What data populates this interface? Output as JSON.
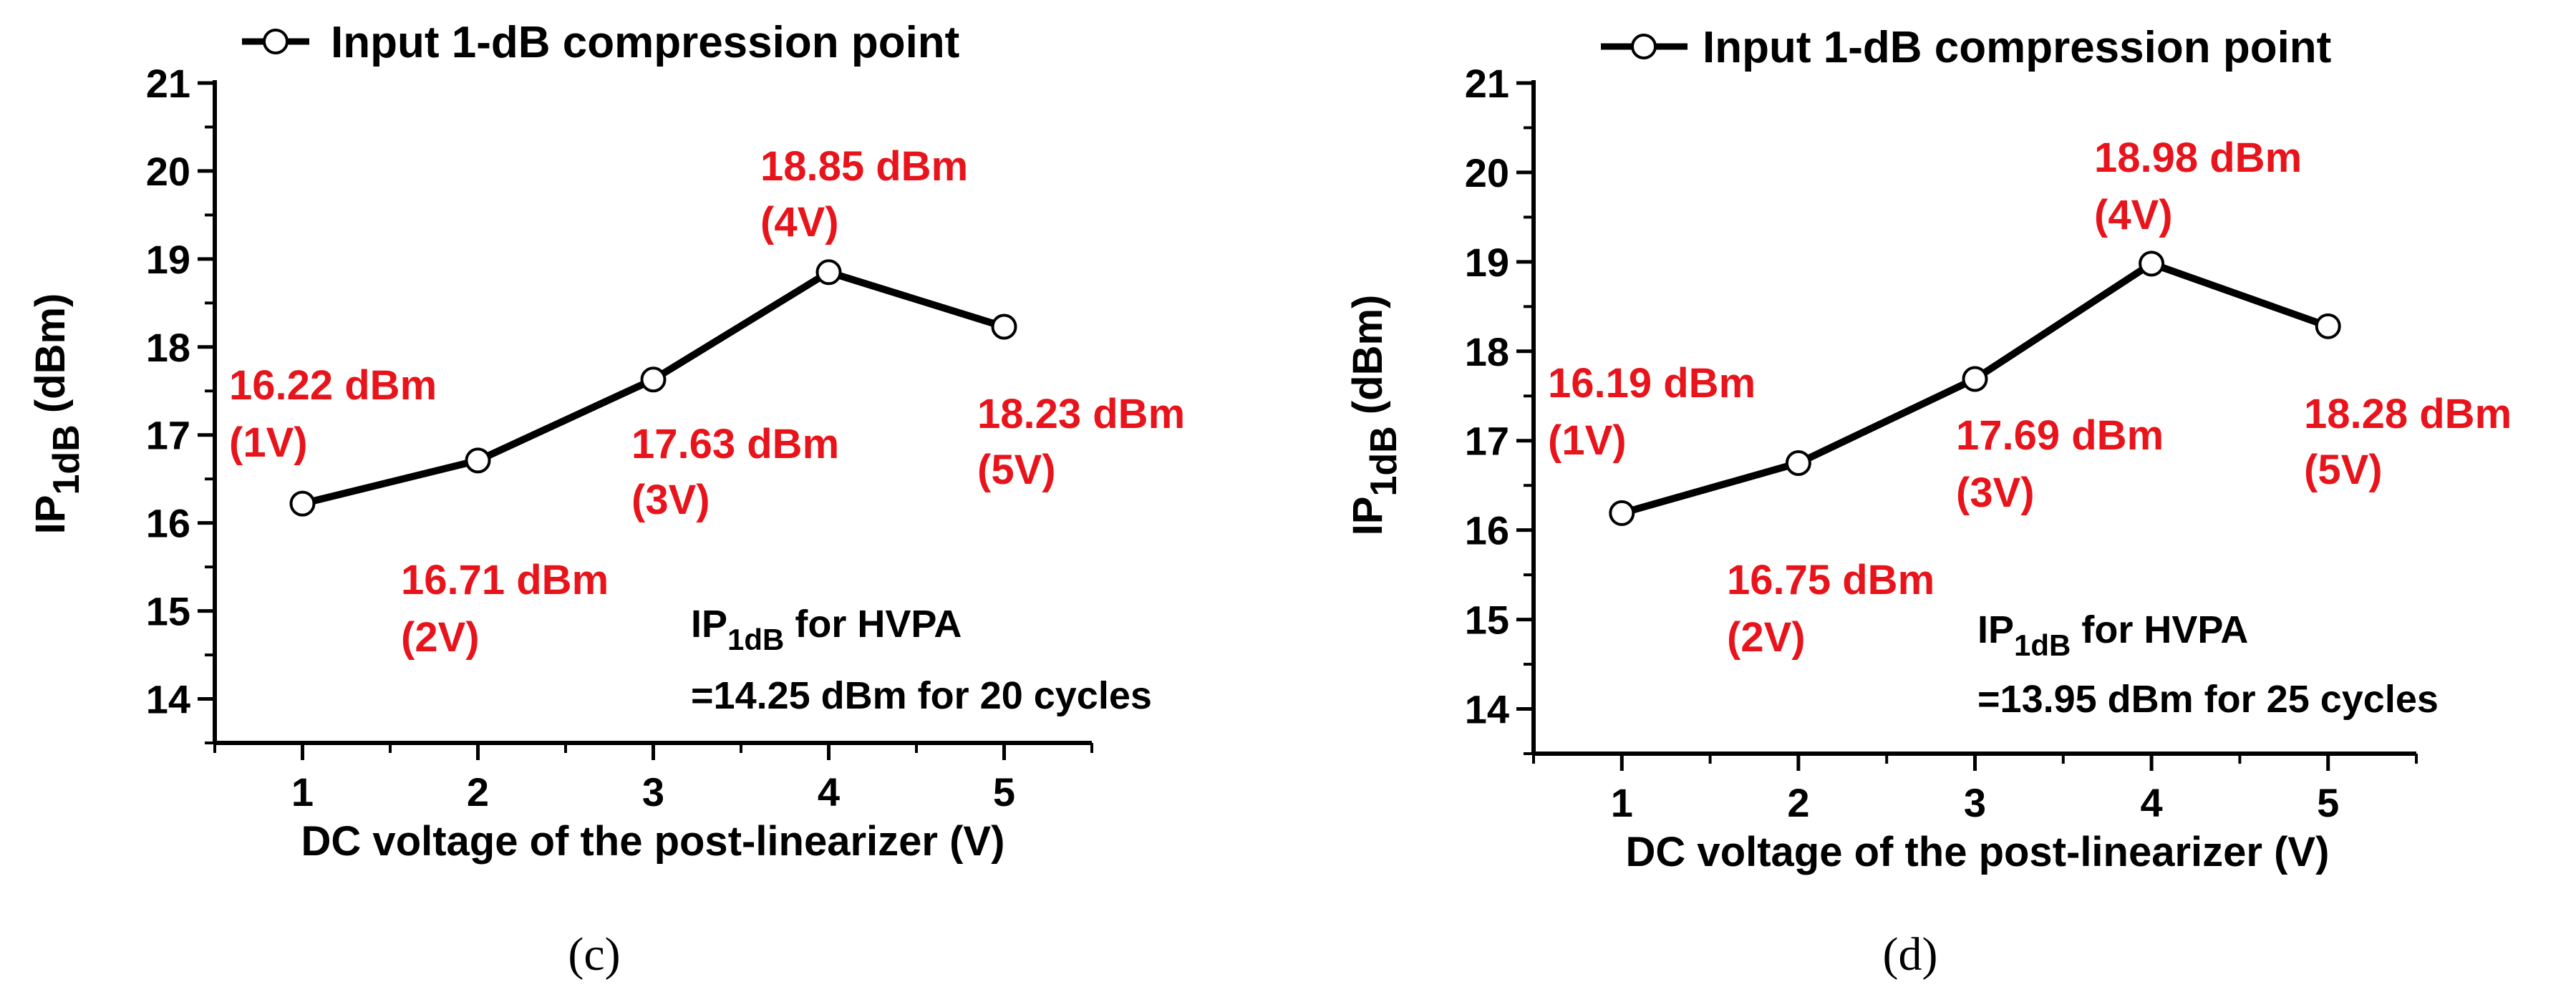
{
  "panels": [
    {
      "panel_label": "(c)",
      "legend": "Input 1-dB compression point",
      "ylabel": {
        "main": "IP",
        "sub": "1dB",
        "unit": " (dBm)"
      },
      "xlabel": "DC voltage of the post-linearizer (V)",
      "note": {
        "line1_main": "IP",
        "line1_sub": "1dB",
        "line1_rest": " for HVPA",
        "line2": "=14.25 dBm for 20 cycles"
      },
      "point_labels": [
        {
          "value": "16.22 dBm",
          "volt": "(1V)"
        },
        {
          "value": "16.71 dBm",
          "volt": "(2V)"
        },
        {
          "value": "17.63 dBm",
          "volt": "(3V)"
        },
        {
          "value": "18.85 dBm",
          "volt": "(4V)"
        },
        {
          "value": "18.23 dBm",
          "volt": "(5V)"
        }
      ]
    },
    {
      "panel_label": "(d)",
      "legend": "Input 1-dB compression point",
      "ylabel": {
        "main": "IP",
        "sub": "1dB",
        "unit": " (dBm)"
      },
      "xlabel": "DC voltage of the post-linearizer (V)",
      "note": {
        "line1_main": "IP",
        "line1_sub": "1dB",
        "line1_rest": " for HVPA",
        "line2": "=13.95 dBm for 25 cycles"
      },
      "point_labels": [
        {
          "value": "16.19 dBm",
          "volt": "(1V)"
        },
        {
          "value": "16.75 dBm",
          "volt": "(2V)"
        },
        {
          "value": "17.69 dBm",
          "volt": "(3V)"
        },
        {
          "value": "18.98 dBm",
          "volt": "(4V)"
        },
        {
          "value": "18.28 dBm",
          "volt": "(5V)"
        }
      ]
    }
  ],
  "chart_data": [
    {
      "type": "line",
      "x": [
        1,
        2,
        3,
        4,
        5
      ],
      "series": [
        {
          "name": "Input 1-dB compression point",
          "values": [
            16.22,
            16.71,
            17.63,
            18.85,
            18.23
          ]
        }
      ],
      "xlabel": "DC voltage of the post-linearizer (V)",
      "ylabel": "IP1dB (dBm)",
      "xlim": [
        0.5,
        5.5
      ],
      "ylim": [
        13.5,
        21
      ],
      "xticks": [
        1,
        2,
        3,
        4,
        5
      ],
      "yticks": [
        14,
        15,
        16,
        17,
        18,
        19,
        20,
        21
      ],
      "legend": "top-left",
      "grid": false
    },
    {
      "type": "line",
      "x": [
        1,
        2,
        3,
        4,
        5
      ],
      "series": [
        {
          "name": "Input 1-dB compression point",
          "values": [
            16.19,
            16.75,
            17.69,
            18.98,
            18.28
          ]
        }
      ],
      "xlabel": "DC voltage of the post-linearizer (V)",
      "ylabel": "IP1dB (dBm)",
      "xlim": [
        0.5,
        5.5
      ],
      "ylim": [
        13.5,
        21
      ],
      "xticks": [
        1,
        2,
        3,
        4,
        5
      ],
      "yticks": [
        14,
        15,
        16,
        17,
        18,
        19,
        20,
        21
      ],
      "legend": "top-left",
      "grid": false
    }
  ]
}
